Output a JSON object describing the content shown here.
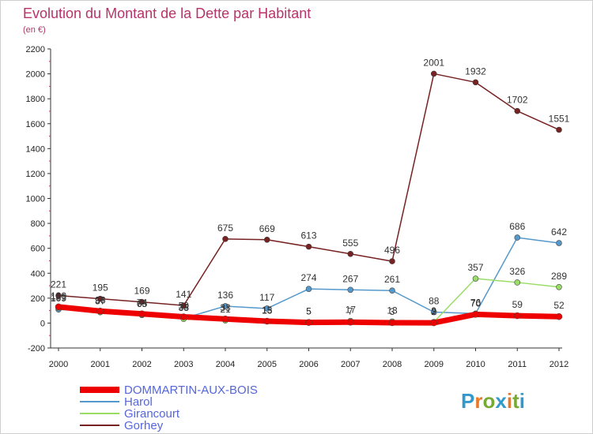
{
  "chart_data": {
    "type": "line",
    "title": "Evolution du Montant de la Dette par Habitant",
    "subtitle": "(en €)",
    "xlabel": "",
    "ylabel": "",
    "categories": [
      "2000",
      "2001",
      "2002",
      "2003",
      "2004",
      "2005",
      "2006",
      "2007",
      "2008",
      "2009",
      "2010",
      "2011",
      "2012"
    ],
    "ylim": [
      -200,
      2200
    ],
    "yticks": [
      -200,
      0,
      200,
      400,
      600,
      800,
      1000,
      1200,
      1400,
      1600,
      1800,
      2000,
      2200
    ],
    "grid": false,
    "legend_position": "bottom-left",
    "series": [
      {
        "name": "DOMMARTIN-AUX-BOIS",
        "color": "#ee0000",
        "values": [
          130,
          96,
          74,
          50,
          33,
          15,
          5,
          7,
          3,
          2,
          70,
          59,
          52
        ],
        "labels": [
          "130",
          "96",
          "74",
          "50",
          "33",
          "15",
          "5",
          "7",
          "3",
          "2",
          "70",
          "59",
          "52"
        ]
      },
      {
        "name": "Harol",
        "color": "#5599cc",
        "values": [
          109,
          96,
          65,
          38,
          136,
          117,
          274,
          267,
          261,
          88,
          76,
          686,
          642
        ],
        "labels": [
          "109",
          "96",
          "65",
          "38",
          "136",
          "117",
          "274",
          "267",
          "261",
          "88",
          "76",
          "686",
          "642"
        ]
      },
      {
        "name": "Girancourt",
        "color": "#99dd66",
        "values": [
          121,
          87,
          65,
          33,
          21,
          13,
          5,
          17,
          13,
          9,
          357,
          326,
          289
        ],
        "labels": [
          "121",
          "87",
          "65",
          "33",
          "21",
          "13",
          "5",
          "17",
          "13",
          "9",
          "357",
          "326",
          "289"
        ]
      },
      {
        "name": "Gorhey",
        "color": "#772222",
        "values": [
          221,
          195,
          169,
          141,
          675,
          669,
          613,
          555,
          496,
          2001,
          1932,
          1702,
          1551
        ],
        "labels": [
          "221",
          "195",
          "169",
          "141",
          "675",
          "669",
          "613",
          "555",
          "496",
          "2001",
          "1932",
          "1702",
          "1551"
        ]
      }
    ]
  },
  "logo": {
    "text": "Proxiti",
    "letter_colors": [
      "#3399cc",
      "#ee7722",
      "#77aa33",
      "#3399cc",
      "#ee7722",
      "#77aa33",
      "#3399cc"
    ]
  }
}
